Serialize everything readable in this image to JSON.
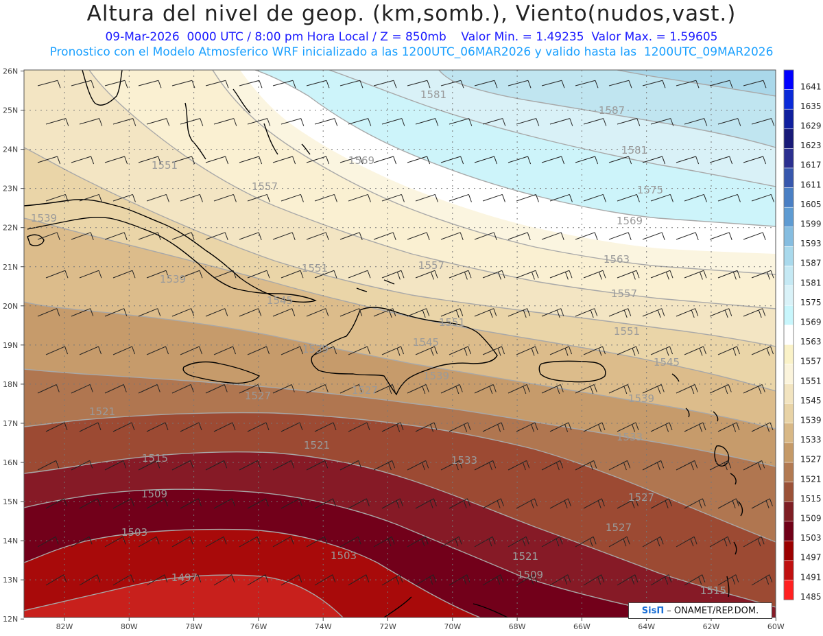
{
  "header": {
    "title": "Altura del nivel de geop. (km,somb.), Viento(nudos,vast.)",
    "subtitle_line1": "09-Mar-2026  0000 UTC / 8:00 pm Hora Local / Z = 850mb    Valor Min. = 1.49235  Valor Max. = 1.59605",
    "subtitle_line2": "Pronostico con el Modelo Atmosferico WRF inicializado a las 1200UTC_06MAR2026 y valido hasta las  1200UTC_09MAR2026"
  },
  "axes": {
    "lat_labels": [
      "26N",
      "25N",
      "24N",
      "23N",
      "22N",
      "21N",
      "20N",
      "19N",
      "18N",
      "17N",
      "16N",
      "15N",
      "14N",
      "13N",
      "12N"
    ],
    "lon_labels": [
      "82W",
      "80W",
      "78W",
      "76W",
      "74W",
      "72W",
      "70W",
      "68W",
      "66W",
      "64W",
      "62W",
      "60W"
    ]
  },
  "colorbar": {
    "levels": [
      "1641",
      "1635",
      "1629",
      "1623",
      "1617",
      "1611",
      "1605",
      "1599",
      "1593",
      "1587",
      "1581",
      "1575",
      "1569",
      "1563",
      "1557",
      "1551",
      "1545",
      "1539",
      "1533",
      "1527",
      "1521",
      "1515",
      "1509",
      "1503",
      "1497",
      "1491",
      "1485"
    ],
    "colors": [
      "#0000ff",
      "#0a2ad8",
      "#0f1f9e",
      "#181a78",
      "#2b2f8f",
      "#3757ad",
      "#4a7fc4",
      "#5e9bd2",
      "#86bde0",
      "#a9d9ec",
      "#c5e9f4",
      "#d9f2f8",
      "#c8f6fc",
      "#ffffff",
      "#faf2c8",
      "#fbf4dc",
      "#f2e4c0",
      "#e8d3a6",
      "#d8b886",
      "#c59a68",
      "#b27a52",
      "#9b5238",
      "#7e1e24",
      "#700018",
      "#9b0000",
      "#c01010",
      "#ff2020"
    ]
  },
  "contour_labels": [
    {
      "text": "1581"
    },
    {
      "text": "1587"
    },
    {
      "text": "1581"
    },
    {
      "text": "1569"
    },
    {
      "text": "1575"
    },
    {
      "text": "1569"
    },
    {
      "text": "1551"
    },
    {
      "text": "1557"
    },
    {
      "text": "1563"
    },
    {
      "text": "1539"
    },
    {
      "text": "1551"
    },
    {
      "text": "1557"
    },
    {
      "text": "1557"
    },
    {
      "text": "1539"
    },
    {
      "text": "1545"
    },
    {
      "text": "1551"
    },
    {
      "text": "1551"
    },
    {
      "text": "1539"
    },
    {
      "text": "1545"
    },
    {
      "text": "1545"
    },
    {
      "text": "1539"
    },
    {
      "text": "1539"
    },
    {
      "text": "1527"
    },
    {
      "text": "1527"
    },
    {
      "text": "1533"
    },
    {
      "text": "1521"
    },
    {
      "text": "1521"
    },
    {
      "text": "1533"
    },
    {
      "text": "1515"
    },
    {
      "text": "1527"
    },
    {
      "text": "1509"
    },
    {
      "text": "1527"
    },
    {
      "text": "1503"
    },
    {
      "text": "1503"
    },
    {
      "text": "1521"
    },
    {
      "text": "1497"
    },
    {
      "text": "1515"
    },
    {
      "text": "1509"
    },
    {
      "text": "1515"
    }
  ],
  "credit": {
    "logo": "SisΠ",
    "text": "– ONAMET/REP.DOM."
  }
}
